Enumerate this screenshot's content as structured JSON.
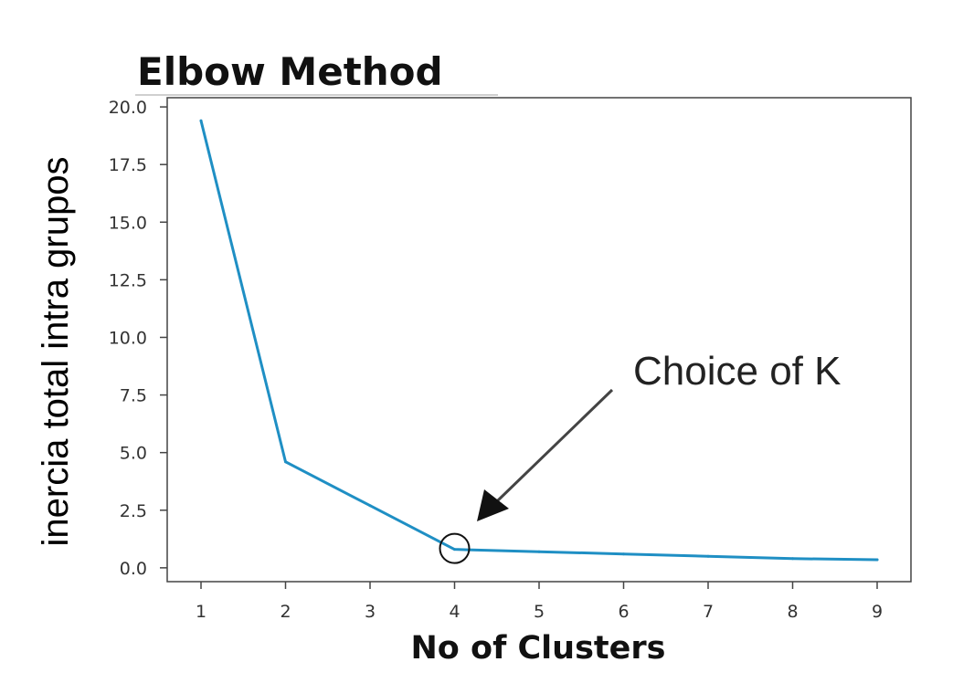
{
  "chart_data": {
    "type": "line",
    "title": "Elbow Method",
    "xlabel": "No of Clusters",
    "ylabel": "inercia total intra grupos",
    "x": [
      1,
      2,
      3,
      4,
      5,
      6,
      7,
      8,
      9
    ],
    "series": [
      {
        "values": [
          19.4,
          4.6,
          2.7,
          0.8,
          0.7,
          0.6,
          0.5,
          0.4,
          0.35
        ]
      }
    ],
    "xticks": [
      "1",
      "2",
      "3",
      "4",
      "5",
      "6",
      "7",
      "8",
      "9"
    ],
    "yticks": [
      "0.0",
      "2.5",
      "5.0",
      "7.5",
      "10.0",
      "12.5",
      "15.0",
      "17.5",
      "20.0"
    ],
    "xlim": [
      0.6,
      9.4
    ],
    "ylim": [
      -0.6,
      20.4
    ],
    "grid": false,
    "line_color": "#1f8fc4",
    "annotation": {
      "text": "Choice of K",
      "target_x": 4,
      "target_y": 0.8
    }
  }
}
